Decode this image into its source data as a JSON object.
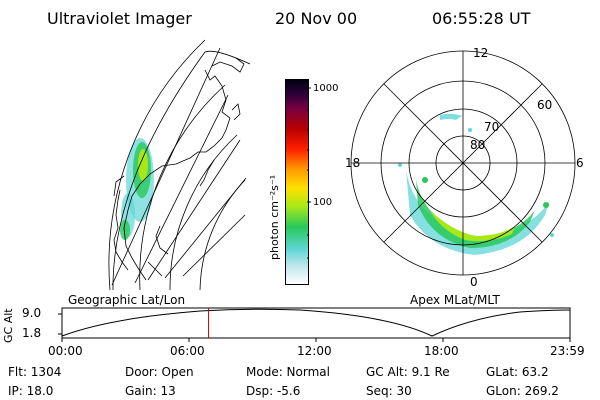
{
  "header": {
    "instrument": "Ultraviolet Imager",
    "date": "20 Nov 00",
    "time": "06:55:28 UT"
  },
  "colorbar": {
    "label": "photon cm⁻²s⁻¹",
    "ticks": [
      "1000",
      "100"
    ],
    "colors": [
      "#ffffff",
      "#c8e8ee",
      "#5fd6d6",
      "#28c85a",
      "#a8e818",
      "#ffe000",
      "#ff9c00",
      "#ff2000",
      "#b80000",
      "#780040",
      "#2c0038",
      "#000010"
    ]
  },
  "polar": {
    "lat_labels": [
      "80",
      "70",
      "60"
    ],
    "mlt_labels": [
      "12",
      "18",
      "6",
      "0"
    ]
  },
  "timeline": {
    "left_title": "Geographic Lat/Lon",
    "right_title": "Apex MLat/MLT",
    "y_axis_label": "GC Alt",
    "y_ticks": [
      "9.0",
      "1.8"
    ],
    "x_ticks": [
      "00:00",
      "06:00",
      "12:00",
      "18:00",
      "23:59"
    ],
    "current_time_fraction": 0.2885
  },
  "status": {
    "flt": "Flt:  1304",
    "ip": "IP:  18.0",
    "door": "Door: Open",
    "gain": "Gain: 13",
    "mode": "Mode: Normal",
    "dsp": "Dsp:     -5.6",
    "gc_alt": "GC Alt: 9.1 Re",
    "seq": "Seq: 30",
    "glat": "GLat:   63.2",
    "glon": "GLon: 269.2"
  }
}
